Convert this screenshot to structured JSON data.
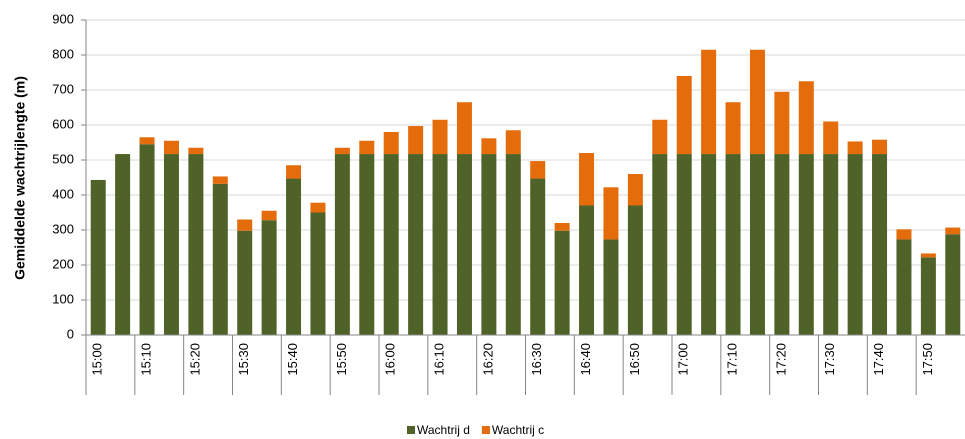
{
  "chart_data": {
    "type": "bar",
    "stacked": true,
    "y_label": "Gemiddelde wachtrijlengte (m)",
    "categories": [
      "15:00",
      null,
      "15:10",
      null,
      "15:20",
      null,
      "15:30",
      null,
      "15:40",
      null,
      "15:50",
      null,
      "16:00",
      null,
      "16:10",
      null,
      "16:20",
      null,
      "16:30",
      null,
      "16:40",
      null,
      "16:50",
      null,
      "17:00",
      null,
      "17:10",
      null,
      "17:20",
      null,
      "17:30",
      null,
      "17:40",
      null,
      "17:50",
      null
    ],
    "series": [
      {
        "name": "Wachtrij d",
        "color": "#4f6228",
        "values": [
          443,
          517,
          545,
          517,
          517,
          432,
          298,
          328,
          447,
          350,
          517,
          517,
          517,
          517,
          517,
          517,
          517,
          517,
          447,
          298,
          370,
          273,
          370,
          517,
          517,
          517,
          517,
          517,
          517,
          517,
          517,
          517,
          517,
          273,
          222,
          288
        ]
      },
      {
        "name": "Wachtrij c",
        "color": "#e46c0a",
        "values": [
          0,
          0,
          20,
          38,
          18,
          21,
          32,
          27,
          38,
          28,
          18,
          38,
          63,
          80,
          98,
          148,
          45,
          68,
          50,
          22,
          150,
          149,
          90,
          98,
          223,
          298,
          148,
          298,
          178,
          208,
          93,
          36,
          41,
          29,
          11,
          19
        ]
      }
    ],
    "ylim": [
      0,
      900
    ],
    "yticks": [
      0,
      100,
      200,
      300,
      400,
      500,
      600,
      700,
      800,
      900
    ],
    "grid": true,
    "legend": "bottom"
  }
}
